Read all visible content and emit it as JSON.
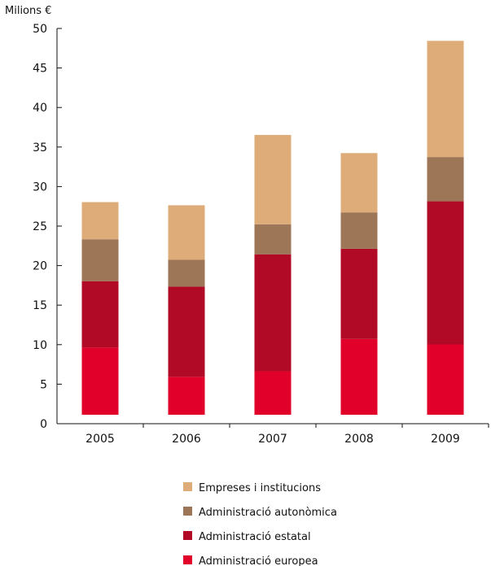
{
  "chart_data": {
    "type": "bar",
    "stacked": true,
    "ylabel": "Milions €",
    "ylim": [
      0,
      50
    ],
    "yticks": [
      0,
      5,
      10,
      15,
      20,
      25,
      30,
      35,
      40,
      45,
      50
    ],
    "categories": [
      "2005",
      "2006",
      "2007",
      "2008",
      "2009"
    ],
    "series": [
      {
        "name": "Administració europea",
        "color": "#e0002a",
        "values": [
          8.5,
          4.8,
          5.5,
          9.6,
          8.9
        ]
      },
      {
        "name": "Administració estatal",
        "color": "#b10a26",
        "values": [
          8.4,
          11.4,
          14.8,
          11.4,
          18.1
        ]
      },
      {
        "name": "Administració autonòmica",
        "color": "#9c7656",
        "values": [
          5.3,
          3.4,
          3.8,
          4.6,
          5.6
        ]
      },
      {
        "name": "Empreses i institucions",
        "color": "#deac78",
        "values": [
          4.7,
          6.9,
          11.3,
          7.5,
          14.7
        ]
      }
    ],
    "legend_order": [
      "Empreses i institucions",
      "Administració autonòmica",
      "Administració estatal",
      "Administració europea"
    ],
    "grid": false,
    "legend_position": "bottom"
  }
}
